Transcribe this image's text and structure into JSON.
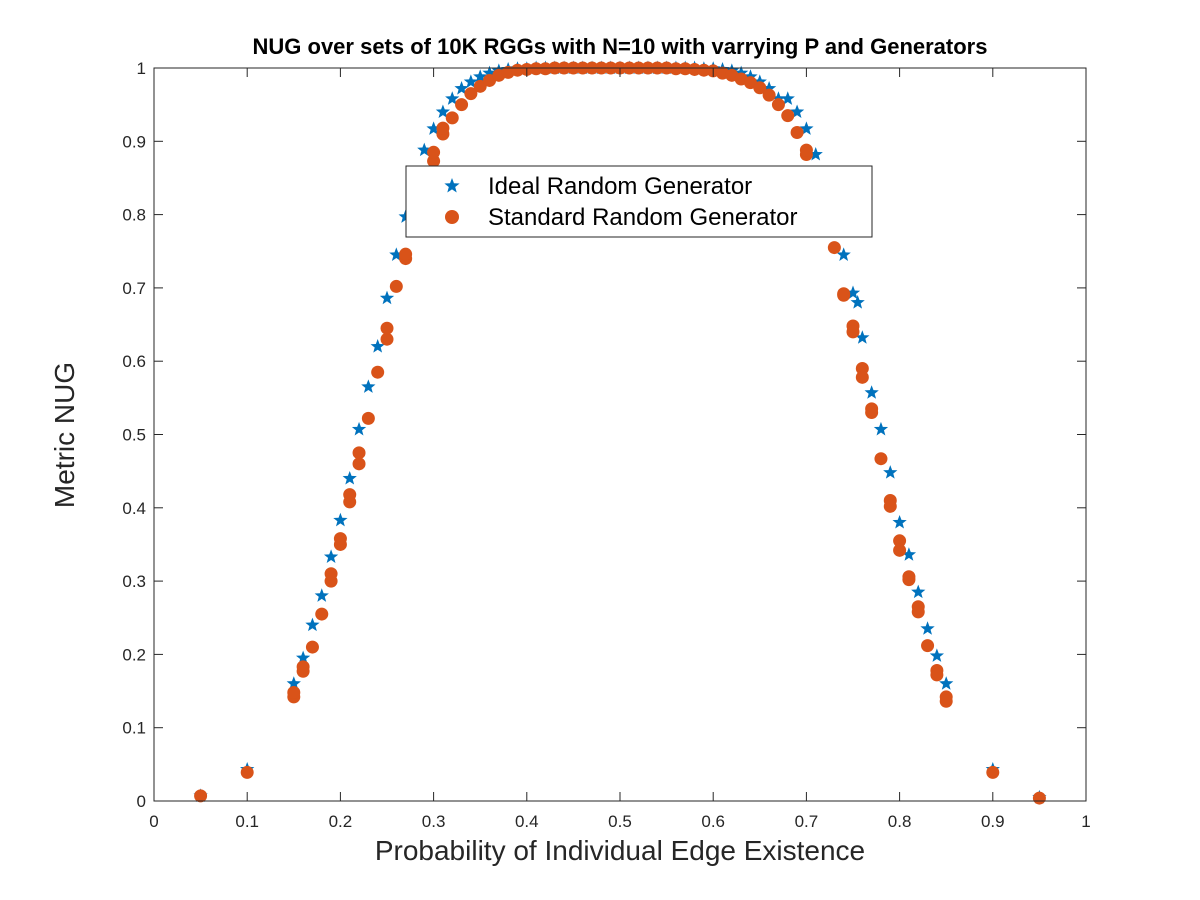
{
  "chart_data": {
    "type": "scatter",
    "title": "NUG over sets of 10K RGGs with N=10 with varrying P and Generators",
    "xlabel": "Probability of Individual Edge Existence",
    "ylabel": "Metric NUG",
    "xlim": [
      0,
      1
    ],
    "ylim": [
      0,
      1
    ],
    "xticks": [
      "0",
      "0.1",
      "0.2",
      "0.3",
      "0.4",
      "0.5",
      "0.6",
      "0.7",
      "0.8",
      "0.9",
      "1"
    ],
    "yticks": [
      "0",
      "0.1",
      "0.2",
      "0.3",
      "0.4",
      "0.5",
      "0.6",
      "0.7",
      "0.8",
      "0.9",
      "1"
    ],
    "grid": false,
    "legend_position": "top-center",
    "series": [
      {
        "name": "Ideal Random Generator",
        "marker": "star",
        "color": "#0072BD",
        "points": [
          [
            0.05,
            0.007
          ],
          [
            0.1,
            0.043
          ],
          [
            0.15,
            0.16
          ],
          [
            0.16,
            0.195
          ],
          [
            0.17,
            0.24
          ],
          [
            0.18,
            0.28
          ],
          [
            0.19,
            0.333
          ],
          [
            0.2,
            0.383
          ],
          [
            0.21,
            0.44
          ],
          [
            0.22,
            0.507
          ],
          [
            0.23,
            0.565
          ],
          [
            0.24,
            0.62
          ],
          [
            0.25,
            0.686
          ],
          [
            0.26,
            0.745
          ],
          [
            0.27,
            0.797
          ],
          [
            0.28,
            0.85
          ],
          [
            0.29,
            0.888
          ],
          [
            0.3,
            0.917
          ],
          [
            0.31,
            0.94
          ],
          [
            0.32,
            0.958
          ],
          [
            0.33,
            0.972
          ],
          [
            0.34,
            0.981
          ],
          [
            0.35,
            0.988
          ],
          [
            0.36,
            0.993
          ],
          [
            0.37,
            0.996
          ],
          [
            0.38,
            0.998
          ],
          [
            0.39,
            0.999
          ],
          [
            0.4,
            0.999
          ],
          [
            0.41,
            1.0
          ],
          [
            0.42,
            1.0
          ],
          [
            0.43,
            1.0
          ],
          [
            0.44,
            1.0
          ],
          [
            0.45,
            1.0
          ],
          [
            0.46,
            1.0
          ],
          [
            0.47,
            1.0
          ],
          [
            0.48,
            1.0
          ],
          [
            0.49,
            1.0
          ],
          [
            0.5,
            1.0
          ],
          [
            0.51,
            1.0
          ],
          [
            0.52,
            1.0
          ],
          [
            0.53,
            1.0
          ],
          [
            0.54,
            1.0
          ],
          [
            0.55,
            1.0
          ],
          [
            0.56,
            1.0
          ],
          [
            0.57,
            1.0
          ],
          [
            0.58,
            1.0
          ],
          [
            0.59,
            0.999
          ],
          [
            0.6,
            0.999
          ],
          [
            0.61,
            0.998
          ],
          [
            0.62,
            0.996
          ],
          [
            0.63,
            0.993
          ],
          [
            0.64,
            0.988
          ],
          [
            0.65,
            0.981
          ],
          [
            0.66,
            0.972
          ],
          [
            0.67,
            0.958
          ],
          [
            0.68,
            0.958
          ],
          [
            0.69,
            0.94
          ],
          [
            0.7,
            0.917
          ],
          [
            0.71,
            0.882
          ],
          [
            0.72,
            0.85
          ],
          [
            0.73,
            0.797
          ],
          [
            0.74,
            0.745
          ],
          [
            0.75,
            0.693
          ],
          [
            0.755,
            0.68
          ],
          [
            0.76,
            0.632
          ],
          [
            0.77,
            0.557
          ],
          [
            0.78,
            0.507
          ],
          [
            0.79,
            0.448
          ],
          [
            0.8,
            0.38
          ],
          [
            0.81,
            0.336
          ],
          [
            0.82,
            0.285
          ],
          [
            0.83,
            0.235
          ],
          [
            0.84,
            0.198
          ],
          [
            0.85,
            0.16
          ],
          [
            0.9,
            0.043
          ],
          [
            0.95,
            0.005
          ]
        ]
      },
      {
        "name": "Standard Random Generator",
        "marker": "circle",
        "color": "#D95319",
        "points": [
          [
            0.05,
            0.007
          ],
          [
            0.1,
            0.039
          ],
          [
            0.15,
            0.142
          ],
          [
            0.15,
            0.148
          ],
          [
            0.16,
            0.177
          ],
          [
            0.16,
            0.183
          ],
          [
            0.17,
            0.21
          ],
          [
            0.18,
            0.255
          ],
          [
            0.19,
            0.3
          ],
          [
            0.19,
            0.31
          ],
          [
            0.2,
            0.35
          ],
          [
            0.2,
            0.358
          ],
          [
            0.21,
            0.408
          ],
          [
            0.21,
            0.418
          ],
          [
            0.22,
            0.46
          ],
          [
            0.22,
            0.475
          ],
          [
            0.23,
            0.522
          ],
          [
            0.24,
            0.585
          ],
          [
            0.25,
            0.63
          ],
          [
            0.25,
            0.645
          ],
          [
            0.26,
            0.702
          ],
          [
            0.27,
            0.74
          ],
          [
            0.27,
            0.746
          ],
          [
            0.3,
            0.873
          ],
          [
            0.3,
            0.885
          ],
          [
            0.31,
            0.91
          ],
          [
            0.31,
            0.918
          ],
          [
            0.32,
            0.932
          ],
          [
            0.33,
            0.95
          ],
          [
            0.34,
            0.965
          ],
          [
            0.35,
            0.975
          ],
          [
            0.36,
            0.983
          ],
          [
            0.37,
            0.99
          ],
          [
            0.38,
            0.994
          ],
          [
            0.39,
            0.997
          ],
          [
            0.4,
            0.998
          ],
          [
            0.41,
            0.999
          ],
          [
            0.42,
            0.999
          ],
          [
            0.43,
            1.0
          ],
          [
            0.44,
            1.0
          ],
          [
            0.45,
            1.0
          ],
          [
            0.46,
            1.0
          ],
          [
            0.47,
            1.0
          ],
          [
            0.48,
            1.0
          ],
          [
            0.49,
            1.0
          ],
          [
            0.5,
            1.0
          ],
          [
            0.51,
            1.0
          ],
          [
            0.52,
            1.0
          ],
          [
            0.53,
            1.0
          ],
          [
            0.54,
            1.0
          ],
          [
            0.55,
            1.0
          ],
          [
            0.56,
            0.999
          ],
          [
            0.57,
            0.999
          ],
          [
            0.58,
            0.998
          ],
          [
            0.59,
            0.997
          ],
          [
            0.6,
            0.996
          ],
          [
            0.61,
            0.993
          ],
          [
            0.62,
            0.99
          ],
          [
            0.63,
            0.985
          ],
          [
            0.64,
            0.98
          ],
          [
            0.65,
            0.973
          ],
          [
            0.66,
            0.963
          ],
          [
            0.67,
            0.95
          ],
          [
            0.68,
            0.935
          ],
          [
            0.69,
            0.912
          ],
          [
            0.7,
            0.882
          ],
          [
            0.7,
            0.888
          ],
          [
            0.73,
            0.755
          ],
          [
            0.74,
            0.692
          ],
          [
            0.74,
            0.69
          ],
          [
            0.75,
            0.648
          ],
          [
            0.75,
            0.64
          ],
          [
            0.76,
            0.59
          ],
          [
            0.76,
            0.578
          ],
          [
            0.77,
            0.535
          ],
          [
            0.77,
            0.53
          ],
          [
            0.78,
            0.467
          ],
          [
            0.79,
            0.41
          ],
          [
            0.79,
            0.402
          ],
          [
            0.8,
            0.355
          ],
          [
            0.8,
            0.342
          ],
          [
            0.81,
            0.306
          ],
          [
            0.81,
            0.302
          ],
          [
            0.82,
            0.265
          ],
          [
            0.82,
            0.258
          ],
          [
            0.83,
            0.212
          ],
          [
            0.84,
            0.178
          ],
          [
            0.84,
            0.172
          ],
          [
            0.85,
            0.142
          ],
          [
            0.85,
            0.136
          ],
          [
            0.9,
            0.039
          ],
          [
            0.95,
            0.004
          ]
        ]
      }
    ]
  }
}
